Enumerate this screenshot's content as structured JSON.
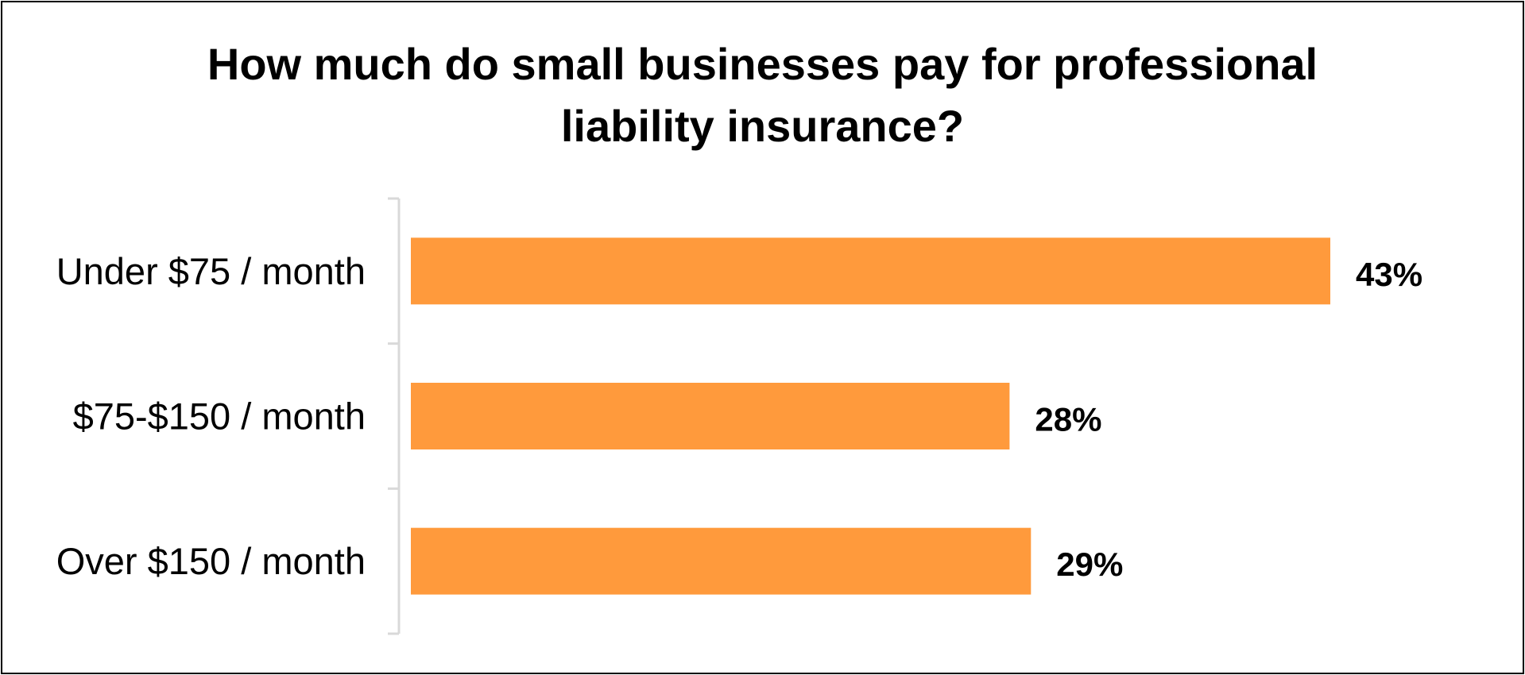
{
  "chart_data": {
    "type": "bar",
    "orientation": "horizontal",
    "title_lines": [
      "How much do small businesses pay for professional",
      "liability insurance?"
    ],
    "categories": [
      "Under $75 / month",
      "$75-$150 / month",
      "Over $150 / month"
    ],
    "values": [
      43,
      28,
      29
    ],
    "value_labels": [
      "43%",
      "28%",
      "29%"
    ],
    "xlim": [
      0,
      43
    ],
    "grid": false,
    "legend": "none",
    "bar_color": "#FF9A3C"
  }
}
